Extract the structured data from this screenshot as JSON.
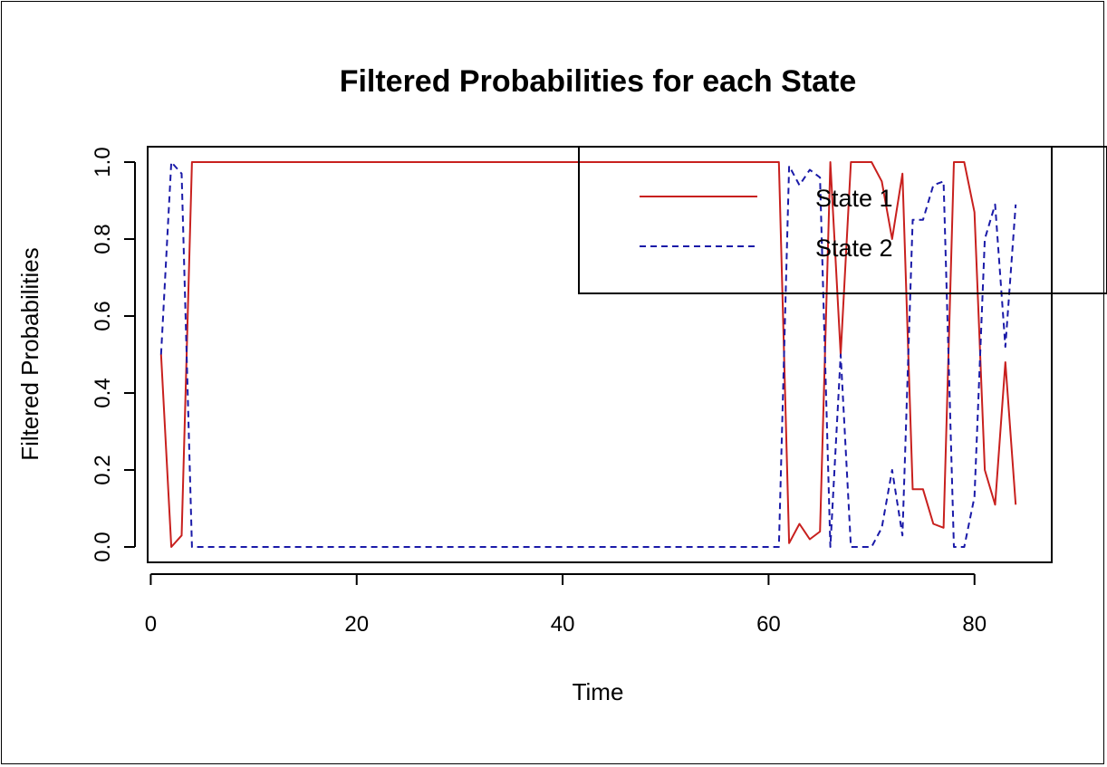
{
  "chart_data": {
    "type": "line",
    "title": "Filtered Probabilities for each State",
    "xlabel": "Time",
    "ylabel": "Filtered Probabilities",
    "xlim": [
      -0.3,
      87.5
    ],
    "ylim": [
      -0.04,
      1.04
    ],
    "xticks": [
      0,
      20,
      40,
      60,
      80
    ],
    "yticks": [
      0.0,
      0.2,
      0.4,
      0.6,
      0.8,
      1.0
    ],
    "xtick_labels": [
      "0",
      "20",
      "40",
      "60",
      "80"
    ],
    "ytick_labels": [
      "0.0",
      "0.2",
      "0.4",
      "0.6",
      "0.8",
      "1.0"
    ],
    "legend_position": "top-right",
    "x": [
      1,
      2,
      3,
      4,
      5,
      61,
      62,
      63,
      64,
      65,
      66,
      67,
      68,
      69,
      70,
      71,
      72,
      73,
      74,
      75,
      76,
      77,
      78,
      79,
      80,
      81,
      82,
      83,
      84
    ],
    "series": [
      {
        "name": "State 1",
        "color": "#c8201e",
        "dash": "solid",
        "values": [
          0.5,
          0.0,
          0.03,
          1.0,
          1.0,
          1.0,
          0.01,
          0.06,
          0.02,
          0.04,
          1.0,
          0.5,
          1.0,
          1.0,
          1.0,
          0.95,
          0.8,
          0.97,
          0.15,
          0.15,
          0.06,
          0.05,
          1.0,
          1.0,
          0.87,
          0.2,
          0.11,
          0.48,
          0.11
        ]
      },
      {
        "name": "State 2",
        "color": "#1a1aa8",
        "dash": "dashed",
        "values": [
          0.5,
          1.0,
          0.97,
          0.0,
          0.0,
          0.0,
          0.99,
          0.94,
          0.98,
          0.96,
          0.0,
          0.5,
          0.0,
          0.0,
          0.0,
          0.05,
          0.2,
          0.03,
          0.85,
          0.85,
          0.94,
          0.95,
          0.0,
          0.0,
          0.13,
          0.8,
          0.89,
          0.52,
          0.89
        ]
      }
    ]
  }
}
